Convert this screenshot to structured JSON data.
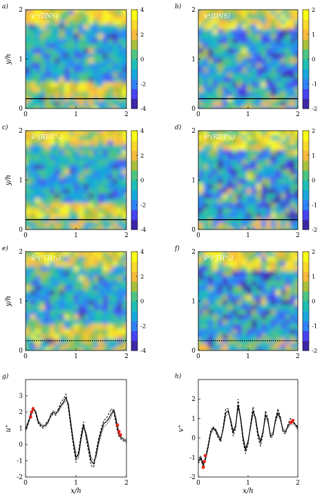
{
  "colormap": [
    "#3e26a8",
    "#4743f0",
    "#2e82f6",
    "#19a6dc",
    "#1fbeb5",
    "#4cc483",
    "#a9c03e",
    "#f6ba3c",
    "#f9d92a",
    "#f9fb15"
  ],
  "chart_data": [
    {
      "id": "a",
      "type": "heatmap",
      "panel_label": "a)",
      "title": "u⁺(DNS)",
      "xlabel": "",
      "ylabel": "y/h",
      "xlim": [
        0,
        2
      ],
      "ylim": [
        0,
        2
      ],
      "xticks": [
        "0",
        "1",
        "2"
      ],
      "yticks": [
        "0",
        "1",
        "2"
      ],
      "colorbar": {
        "range": [
          -4,
          4
        ],
        "ticks": [
          "4",
          "2",
          "0",
          "-2",
          "-4"
        ]
      },
      "reference_line": {
        "y": 0.2,
        "style": "solid"
      }
    },
    {
      "id": "b",
      "type": "heatmap",
      "panel_label": "b)",
      "title": "v⁺(DNS)",
      "xlabel": "",
      "ylabel": "",
      "xlim": [
        0,
        2
      ],
      "ylim": [
        0,
        2
      ],
      "xticks": [
        "0",
        "1",
        "2"
      ],
      "yticks": [
        "0",
        "1",
        "2"
      ],
      "colorbar": {
        "range": [
          -2,
          2
        ],
        "ticks": [
          "2",
          "1",
          "0",
          "-1",
          "-2"
        ]
      },
      "reference_line": {
        "y": 0.2,
        "style": "solid"
      }
    },
    {
      "id": "c",
      "type": "heatmap",
      "panel_label": "c)",
      "title": "ũ⁺(RDT⁺ₚ)",
      "xlabel": "",
      "ylabel": "y/h",
      "xlim": [
        0,
        2
      ],
      "ylim": [
        0,
        2
      ],
      "xticks": [
        "0",
        "1",
        "2"
      ],
      "yticks": [
        "0",
        "1",
        "2"
      ],
      "colorbar": {
        "range": [
          -4,
          4
        ],
        "ticks": [
          "4",
          "2",
          "0",
          "-2",
          "-4"
        ]
      },
      "reference_line": {
        "y": 0.2,
        "style": "solid"
      }
    },
    {
      "id": "d",
      "type": "heatmap",
      "panel_label": "d)",
      "title": "ṽ⁺(RDT⁺ₚ)",
      "xlabel": "",
      "ylabel": "",
      "xlim": [
        0,
        2
      ],
      "ylim": [
        0,
        2
      ],
      "xticks": [
        "0",
        "1",
        "2"
      ],
      "yticks": [
        "0",
        "1",
        "2"
      ],
      "colorbar": {
        "range": [
          -2,
          2
        ],
        "ticks": [
          "2",
          "1",
          "0",
          "-1",
          "-2"
        ]
      },
      "reference_line": {
        "y": 0.2,
        "style": "solid"
      }
    },
    {
      "id": "e",
      "type": "heatmap",
      "panel_label": "e)",
      "title": "ũ⁺(ᶜTH⁺ₚ)",
      "xlabel": "",
      "ylabel": "y/h",
      "xlim": [
        0,
        2
      ],
      "ylim": [
        0,
        2
      ],
      "xticks": [
        "0",
        "1",
        "2"
      ],
      "yticks": [
        "0",
        "1",
        "2"
      ],
      "colorbar": {
        "range": [
          -4,
          4
        ],
        "ticks": [
          "4",
          "2",
          "0",
          "-2",
          "-4"
        ]
      },
      "reference_line": {
        "y": 0.2,
        "style": "dotted"
      }
    },
    {
      "id": "f",
      "type": "heatmap",
      "panel_label": "f)",
      "title": "ṽ⁺(ᶜTH⁺ₚ)",
      "xlabel": "",
      "ylabel": "",
      "xlim": [
        0,
        2
      ],
      "ylim": [
        0,
        2
      ],
      "xticks": [
        "0",
        "1",
        "2"
      ],
      "yticks": [
        "0",
        "1",
        "2"
      ],
      "colorbar": {
        "range": [
          -2,
          2
        ],
        "ticks": [
          "2",
          "1",
          "0",
          "-1",
          "-2"
        ]
      },
      "reference_line": {
        "y": 0.2,
        "style": "dotted"
      }
    },
    {
      "id": "g",
      "type": "line",
      "panel_label": "g)",
      "xlabel": "x/h",
      "ylabel": "u⁺",
      "xlim": [
        0,
        2
      ],
      "ylim": [
        -2,
        4
      ],
      "xticks": [
        "0",
        "1",
        "2"
      ],
      "yticks": [
        "-2",
        "-1",
        "0",
        "1",
        "2",
        "3"
      ],
      "ytick_values": [
        -2,
        -1,
        0,
        1,
        2,
        3
      ],
      "x": [
        0,
        0.05,
        0.1,
        0.15,
        0.2,
        0.25,
        0.3,
        0.35,
        0.4,
        0.45,
        0.5,
        0.55,
        0.6,
        0.65,
        0.7,
        0.75,
        0.8,
        0.85,
        0.9,
        0.95,
        1.0,
        1.05,
        1.1,
        1.15,
        1.2,
        1.25,
        1.3,
        1.35,
        1.4,
        1.45,
        1.5,
        1.55,
        1.6,
        1.65,
        1.7,
        1.75,
        1.8,
        1.85,
        1.9,
        1.95,
        2.0
      ],
      "series": [
        {
          "style": "solid",
          "values": [
            0.9,
            1.3,
            1.8,
            2.2,
            2.0,
            1.4,
            1.2,
            1.1,
            1.2,
            1.4,
            1.8,
            2.0,
            1.9,
            2.1,
            2.4,
            2.6,
            2.9,
            2.4,
            1.2,
            0.1,
            -0.8,
            -0.6,
            0.4,
            1.2,
            0.6,
            -0.2,
            -1.0,
            -1.2,
            -0.6,
            0.2,
            0.8,
            1.3,
            1.4,
            1.6,
            1.9,
            2.1,
            1.4,
            0.6,
            0.4,
            0.3,
            0.2
          ]
        },
        {
          "style": "dashed",
          "values": [
            1.0,
            1.4,
            1.9,
            2.3,
            1.9,
            1.3,
            1.1,
            1.0,
            1.3,
            1.5,
            1.7,
            1.9,
            1.8,
            2.2,
            2.6,
            2.8,
            3.1,
            2.2,
            1.0,
            -0.1,
            -1.1,
            -0.4,
            0.6,
            1.4,
            0.4,
            -0.5,
            -1.3,
            -1.4,
            -0.4,
            0.4,
            1.0,
            1.5,
            1.6,
            1.9,
            2.2,
            2.0,
            1.1,
            0.5,
            0.3,
            0.2,
            0.1
          ]
        },
        {
          "style": "dotted",
          "values": [
            0.8,
            1.2,
            1.7,
            2.1,
            2.1,
            1.5,
            1.3,
            1.2,
            1.1,
            1.3,
            1.9,
            2.1,
            2.0,
            2.0,
            2.3,
            2.5,
            2.7,
            2.6,
            1.4,
            0.3,
            -0.5,
            -0.8,
            0.2,
            1.0,
            0.8,
            0.0,
            -0.8,
            -1.0,
            -0.8,
            0.0,
            0.6,
            1.1,
            1.2,
            1.4,
            1.7,
            2.2,
            1.6,
            0.8,
            0.5,
            0.4,
            0.3
          ]
        }
      ],
      "highlight_points": [
        [
          0.1,
          1.7
        ],
        [
          0.12,
          2.0
        ],
        [
          0.15,
          2.2
        ],
        [
          1.82,
          1.2
        ],
        [
          1.85,
          0.8
        ],
        [
          1.88,
          0.6
        ]
      ]
    },
    {
      "id": "h",
      "type": "line",
      "panel_label": "h)",
      "xlabel": "x/h",
      "ylabel": "v⁺",
      "xlim": [
        0,
        2
      ],
      "ylim": [
        -2,
        3
      ],
      "xticks": [
        "0",
        "1",
        "2"
      ],
      "yticks": [
        "-2",
        "-1",
        "0",
        "1",
        "2"
      ],
      "ytick_values": [
        -2,
        -1,
        0,
        1,
        2
      ],
      "x": [
        0,
        0.05,
        0.1,
        0.15,
        0.2,
        0.25,
        0.3,
        0.35,
        0.4,
        0.45,
        0.5,
        0.55,
        0.6,
        0.65,
        0.7,
        0.75,
        0.8,
        0.85,
        0.9,
        0.95,
        1.0,
        1.05,
        1.1,
        1.15,
        1.2,
        1.25,
        1.3,
        1.35,
        1.4,
        1.45,
        1.5,
        1.55,
        1.6,
        1.65,
        1.7,
        1.75,
        1.8,
        1.85,
        1.9,
        1.95,
        2.0
      ],
      "series": [
        {
          "style": "solid",
          "values": [
            -1.2,
            -1.0,
            -1.4,
            -1.0,
            -0.4,
            0.3,
            0.5,
            0.4,
            0.1,
            -0.1,
            0.5,
            1.3,
            1.4,
            0.9,
            0.3,
            0.6,
            1.7,
            1.0,
            0.0,
            -0.6,
            -0.2,
            0.6,
            1.4,
            1.0,
            0.2,
            -0.2,
            0.3,
            1.2,
            0.9,
            0.1,
            0.2,
            0.9,
            1.3,
            1.0,
            0.4,
            0.3,
            0.6,
            0.8,
            0.8,
            0.7,
            0.5
          ]
        },
        {
          "style": "dashed",
          "values": [
            -1.3,
            -1.1,
            -1.5,
            -0.9,
            -0.3,
            0.4,
            0.6,
            0.3,
            0.0,
            -0.2,
            0.6,
            1.5,
            1.5,
            0.8,
            0.1,
            0.5,
            2.0,
            0.9,
            -0.2,
            -0.8,
            -0.3,
            0.7,
            1.6,
            0.9,
            0.0,
            -0.4,
            0.2,
            1.4,
            1.0,
            0.0,
            0.1,
            1.0,
            1.5,
            1.1,
            0.3,
            0.2,
            0.7,
            1.0,
            0.9,
            0.7,
            0.6
          ]
        },
        {
          "style": "dotted",
          "values": [
            -1.1,
            -0.9,
            -1.3,
            -1.1,
            -0.5,
            0.2,
            0.4,
            0.5,
            0.2,
            0.0,
            0.4,
            1.1,
            1.3,
            1.0,
            0.4,
            0.7,
            1.5,
            1.1,
            0.1,
            -0.5,
            -0.1,
            0.5,
            1.2,
            1.1,
            0.3,
            -0.1,
            0.4,
            1.0,
            0.8,
            0.2,
            0.3,
            0.8,
            1.2,
            0.9,
            0.5,
            0.4,
            0.5,
            0.7,
            0.7,
            0.6,
            0.4
          ]
        }
      ],
      "highlight_points": [
        [
          0.1,
          -1.5
        ],
        [
          0.12,
          -1.2
        ],
        [
          0.14,
          -0.9
        ],
        [
          1.86,
          0.8
        ],
        [
          1.9,
          0.9
        ]
      ]
    }
  ]
}
